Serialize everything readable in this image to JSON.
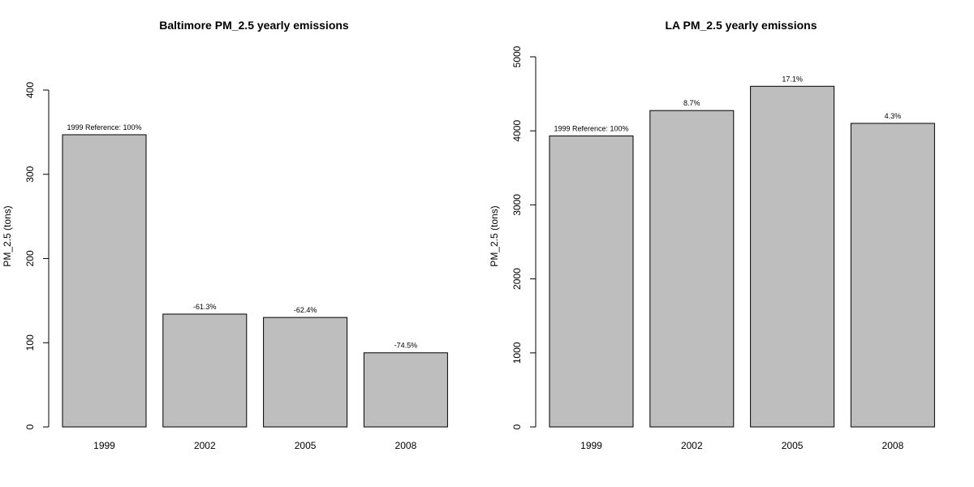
{
  "chart_data": [
    {
      "type": "bar",
      "title": "Baltimore PM_2.5 yearly emissions",
      "xlabel": "",
      "ylabel": "PM_2.5 (tons)",
      "categories": [
        "1999",
        "2002",
        "2005",
        "2008"
      ],
      "values": [
        347,
        134,
        130,
        88
      ],
      "data_labels": [
        "1999 Reference: 100%",
        "-61.3%",
        "-62.4%",
        "-74.5%"
      ],
      "yticks": [
        0,
        100,
        200,
        300,
        400
      ],
      "ylim": [
        0,
        400
      ],
      "bar_color": "#bebebe",
      "grid": false
    },
    {
      "type": "bar",
      "title": "LA PM_2.5 yearly emissions",
      "xlabel": "",
      "ylabel": "PM_2.5 (tons)",
      "categories": [
        "1999",
        "2002",
        "2005",
        "2008"
      ],
      "values": [
        3931,
        4274,
        4602,
        4101
      ],
      "data_labels": [
        "1999 Reference: 100%",
        "8.7%",
        "17.1%",
        "4.3%"
      ],
      "yticks": [
        0,
        1000,
        2000,
        3000,
        4000,
        5000
      ],
      "ylim": [
        0,
        5000
      ],
      "bar_color": "#bebebe",
      "grid": false
    }
  ]
}
